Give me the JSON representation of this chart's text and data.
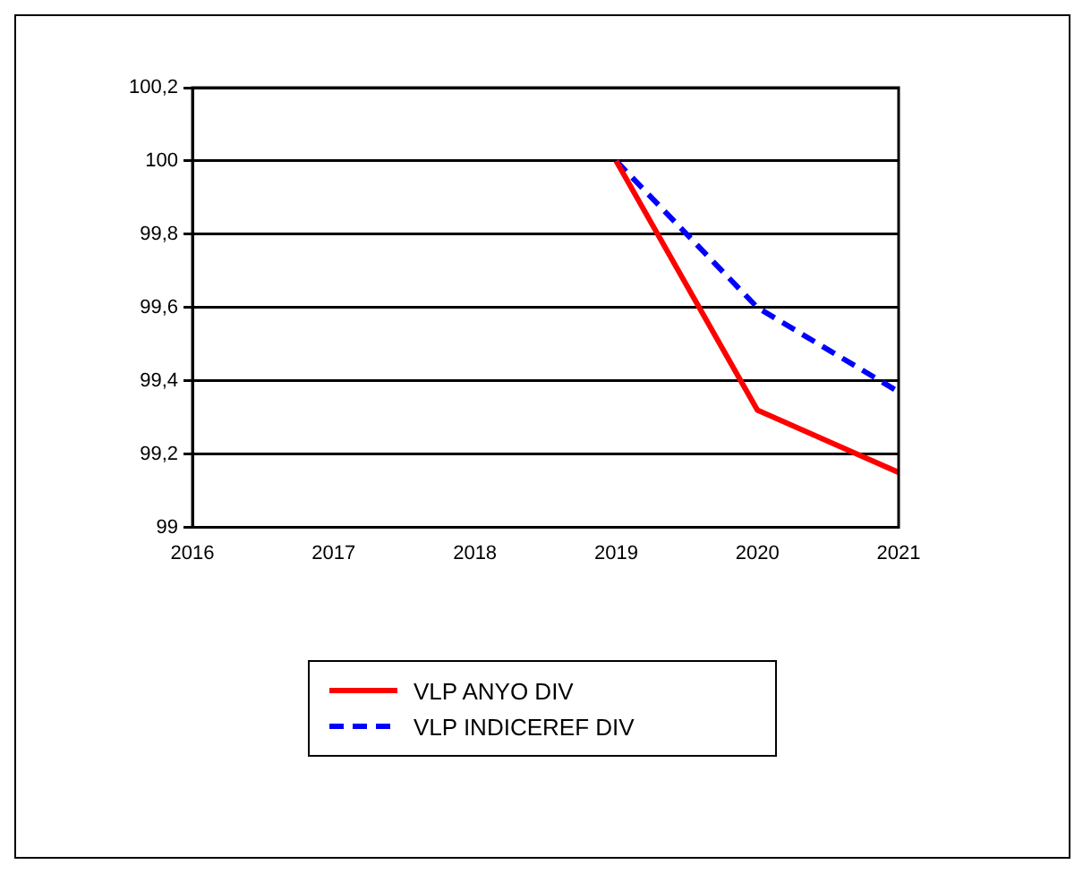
{
  "chart_data": {
    "type": "line",
    "x": [
      2019,
      2020,
      2021
    ],
    "series": [
      {
        "name": "VLP ANYO DIV",
        "color": "#ff0000",
        "values": [
          100,
          99.32,
          99.15
        ],
        "line_style": "solid"
      },
      {
        "name": "VLP INDICEREF DIV",
        "color": "#0000ff",
        "values": [
          100,
          99.6,
          99.37
        ],
        "line_style": "dashed"
      }
    ],
    "xlim": [
      2016,
      2021
    ],
    "xticks": [
      2016,
      2017,
      2018,
      2019,
      2020,
      2021
    ],
    "ylim": [
      99,
      100.2
    ],
    "yticks": [
      99,
      {
        "value": 99.2,
        "label": "99,2"
      },
      {
        "value": 99.4,
        "label": "99,4"
      },
      {
        "value": 99.6,
        "label": "99,6"
      },
      {
        "value": 99.8,
        "label": "99,8"
      },
      100,
      {
        "value": 100.2,
        "label": "100,2"
      }
    ],
    "grid": "y",
    "legend": "bottom",
    "marker": "none"
  }
}
